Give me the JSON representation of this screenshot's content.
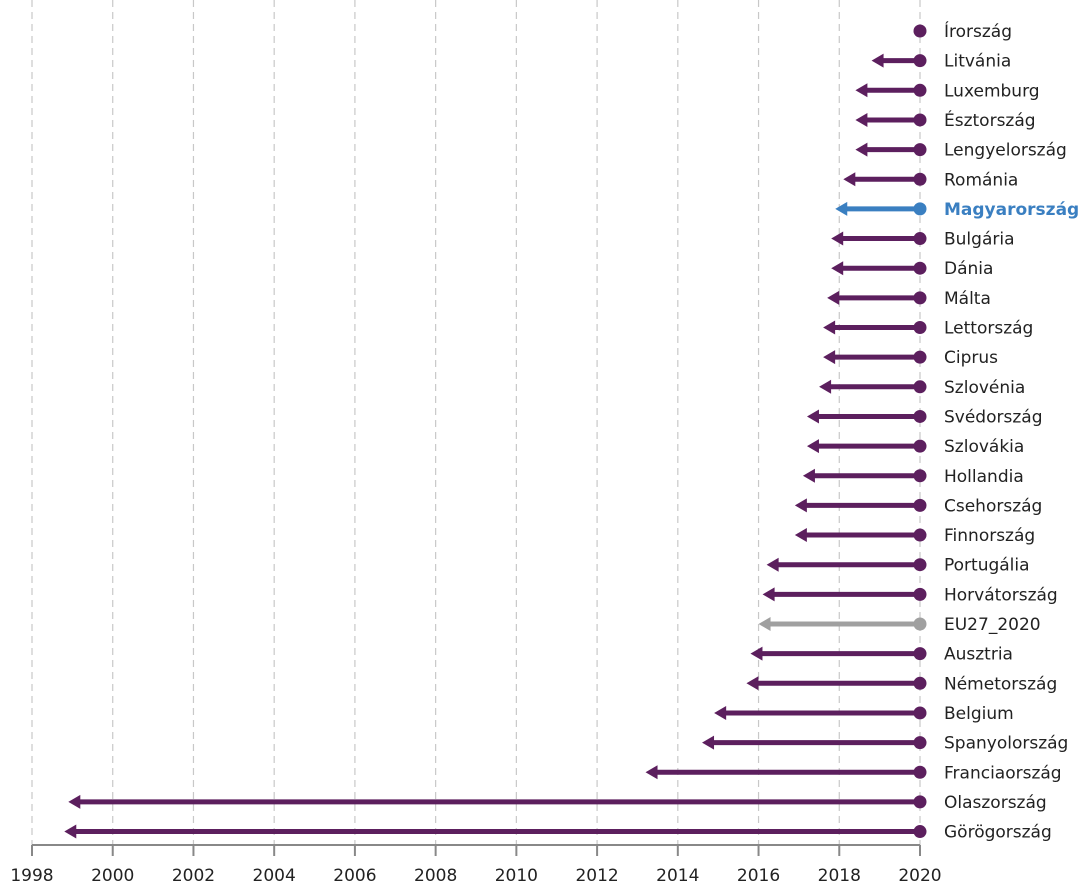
{
  "chart_data": {
    "type": "arrow-range",
    "x_axis": {
      "min": 1998,
      "max": 2020,
      "tick_labels": [
        "1998",
        "2000",
        "2002",
        "2004",
        "2006",
        "2008",
        "2010",
        "2012",
        "2014",
        "2016",
        "2018",
        "2020"
      ]
    },
    "grid": true,
    "end_year": 2020,
    "colors": {
      "default": "#5c1f5e",
      "highlight": "#3a7fc1",
      "eu": "#a0a0a0",
      "axis": "#888888",
      "grid": "#c8c8c8"
    },
    "series": [
      {
        "label": "Írország",
        "start": 2020.0,
        "style": "default"
      },
      {
        "label": "Litvánia",
        "start": 2018.8,
        "style": "default"
      },
      {
        "label": "Luxemburg",
        "start": 2018.4,
        "style": "default"
      },
      {
        "label": "Észtország",
        "start": 2018.4,
        "style": "default"
      },
      {
        "label": "Lengyelország",
        "start": 2018.4,
        "style": "default"
      },
      {
        "label": "Románia",
        "start": 2018.1,
        "style": "default"
      },
      {
        "label": "Magyarország",
        "start": 2017.9,
        "style": "highlight"
      },
      {
        "label": "Bulgária",
        "start": 2017.8,
        "style": "default"
      },
      {
        "label": "Dánia",
        "start": 2017.8,
        "style": "default"
      },
      {
        "label": "Málta",
        "start": 2017.7,
        "style": "default"
      },
      {
        "label": "Lettország",
        "start": 2017.6,
        "style": "default"
      },
      {
        "label": "Ciprus",
        "start": 2017.6,
        "style": "default"
      },
      {
        "label": "Szlovénia",
        "start": 2017.5,
        "style": "default"
      },
      {
        "label": "Svédország",
        "start": 2017.2,
        "style": "default"
      },
      {
        "label": "Szlovákia",
        "start": 2017.2,
        "style": "default"
      },
      {
        "label": "Hollandia",
        "start": 2017.1,
        "style": "default"
      },
      {
        "label": "Csehország",
        "start": 2016.9,
        "style": "default"
      },
      {
        "label": "Finnország",
        "start": 2016.9,
        "style": "default"
      },
      {
        "label": "Portugália",
        "start": 2016.2,
        "style": "default"
      },
      {
        "label": "Horvátország",
        "start": 2016.1,
        "style": "default"
      },
      {
        "label": "EU27_2020",
        "start": 2016.0,
        "style": "eu"
      },
      {
        "label": "Ausztria",
        "start": 2015.8,
        "style": "default"
      },
      {
        "label": "Németország",
        "start": 2015.7,
        "style": "default"
      },
      {
        "label": "Belgium",
        "start": 2014.9,
        "style": "default"
      },
      {
        "label": "Spanyolország",
        "start": 2014.6,
        "style": "default"
      },
      {
        "label": "Franciaország",
        "start": 2013.2,
        "style": "default"
      },
      {
        "label": "Olaszország",
        "start": 1998.9,
        "style": "default"
      },
      {
        "label": "Görögország",
        "start": 1998.8,
        "style": "default"
      }
    ]
  }
}
